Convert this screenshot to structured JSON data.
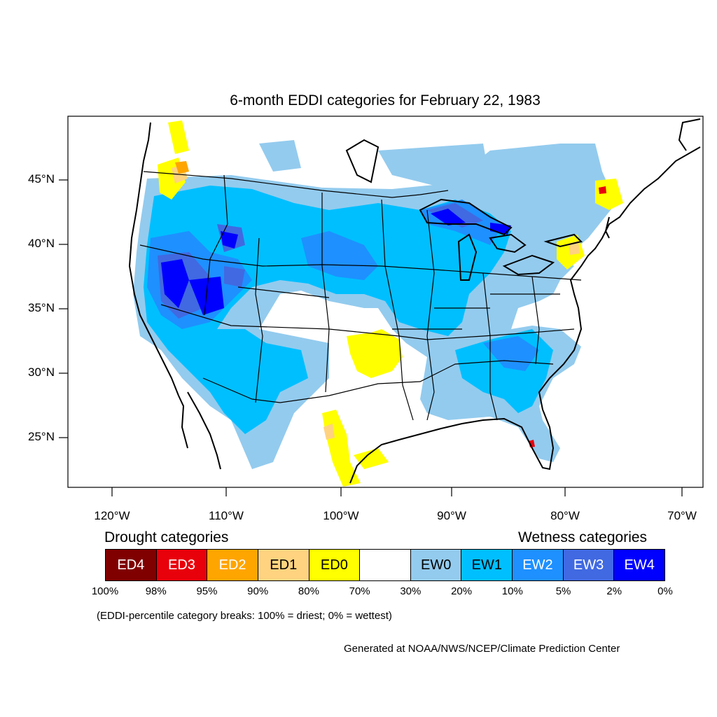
{
  "title": "6-month EDDI categories for February 22, 1983",
  "lat_labels": [
    "45°N",
    "40°N",
    "35°N",
    "30°N",
    "25°N"
  ],
  "lon_labels": [
    "120°W",
    "110°W",
    "100°W",
    "90°W",
    "80°W",
    "70°W"
  ],
  "legend": {
    "drought_heading": "Drought categories",
    "wetness_heading": "Wetness categories",
    "categories": [
      {
        "label": "ED4",
        "color": "#800000",
        "text_color": "#ffffff"
      },
      {
        "label": "ED3",
        "color": "#e8000b",
        "text_color": "#ffffff"
      },
      {
        "label": "ED2",
        "color": "#ffa500",
        "text_color": "#ffffff"
      },
      {
        "label": "ED1",
        "color": "#ffd37f",
        "text_color": "#000000"
      },
      {
        "label": "ED0",
        "color": "#ffff00",
        "text_color": "#000000"
      },
      {
        "label": "",
        "color": "#ffffff",
        "text_color": "#000000"
      },
      {
        "label": "EW0",
        "color": "#93cbee",
        "text_color": "#000000"
      },
      {
        "label": "EW1",
        "color": "#00bfff",
        "text_color": "#000000"
      },
      {
        "label": "EW2",
        "color": "#1e90ff",
        "text_color": "#ffffff"
      },
      {
        "label": "EW3",
        "color": "#4169e1",
        "text_color": "#ffffff"
      },
      {
        "label": "EW4",
        "color": "#0000ff",
        "text_color": "#ffffff"
      }
    ],
    "breaks": [
      "100%",
      "98%",
      "95%",
      "90%",
      "80%",
      "70%",
      "30%",
      "20%",
      "10%",
      "5%",
      "2%",
      "0%"
    ]
  },
  "note": "(EDDI-percentile category breaks: 100% = driest; 0% = wettest)",
  "credit": "Generated at NOAA/NWS/NCEP/Climate Prediction Center"
}
